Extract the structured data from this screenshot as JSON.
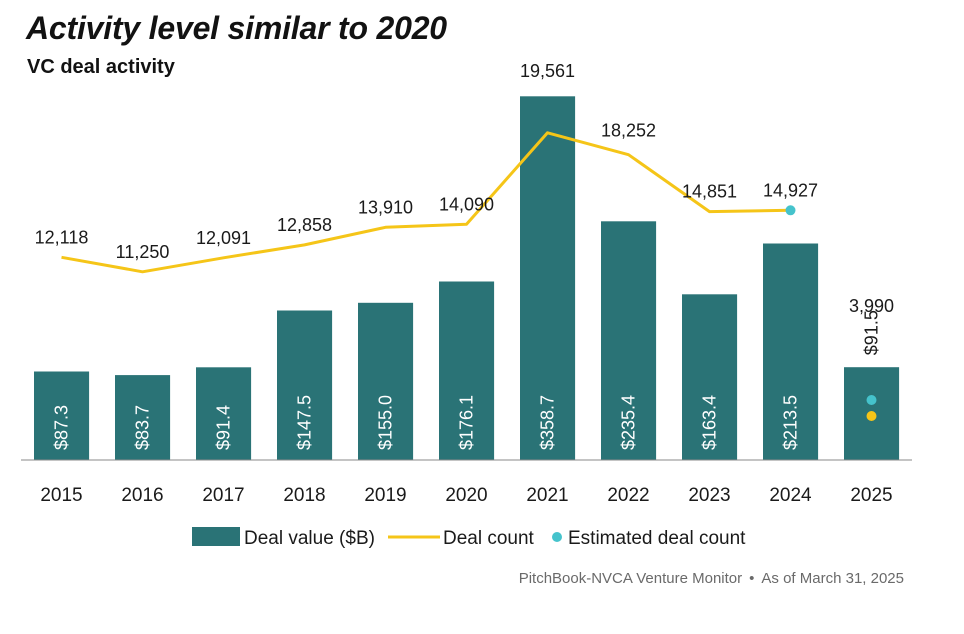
{
  "chart_data": {
    "type": "bar",
    "title": "Activity level similar to 2020",
    "subtitle": "VC deal activity",
    "categories": [
      "2015",
      "2016",
      "2017",
      "2018",
      "2019",
      "2020",
      "2021",
      "2022",
      "2023",
      "2024",
      "2025"
    ],
    "series": [
      {
        "name": "Deal value ($B)",
        "type": "bar",
        "values": [
          87.3,
          83.7,
          91.4,
          147.5,
          155.0,
          176.1,
          358.7,
          235.4,
          163.4,
          213.5,
          91.5
        ],
        "labels": [
          "$87.3",
          "$83.7",
          "$91.4",
          "$147.5",
          "$155.0",
          "$176.1",
          "$358.7",
          "$235.4",
          "$163.4",
          "$213.5",
          "$91.5"
        ]
      },
      {
        "name": "Deal count",
        "type": "line",
        "values": [
          12118,
          11250,
          12091,
          12858,
          13910,
          14090,
          19561,
          18252,
          14851,
          14927,
          3990
        ],
        "labels": [
          "12,118",
          "11,250",
          "12,091",
          "12,858",
          "13,910",
          "14,090",
          "19,561",
          "18,252",
          "14,851",
          "14,927",
          "3,990"
        ]
      },
      {
        "name": "Estimated deal count",
        "type": "marker"
      }
    ],
    "bar_ylim": [
      0,
      360
    ],
    "line_ylim": [
      0,
      22000
    ],
    "legend_position": "bottom",
    "grid": false,
    "colors": {
      "bar": "#2a7376",
      "line": "#f5c518",
      "estimate": "#45c3cc",
      "axis": "#8a8a8a"
    }
  },
  "source": {
    "text": "PitchBook-NVCA Venture Monitor",
    "separator": "•",
    "date": "As of March 31, 2025"
  }
}
